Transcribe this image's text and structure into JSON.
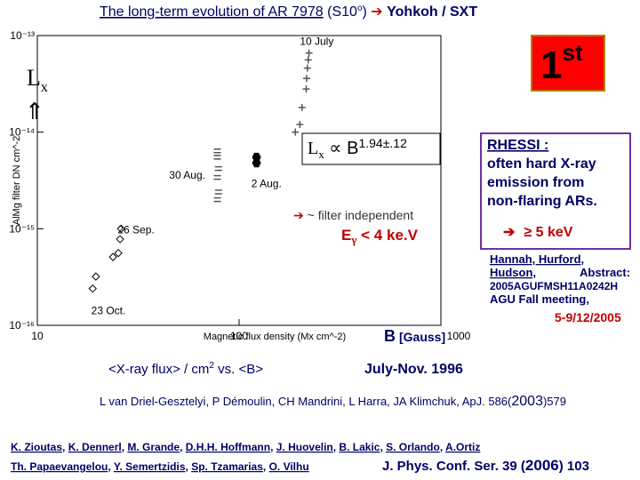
{
  "title": {
    "main": "The long-term evolution of AR 7978",
    "pre": "(S10",
    "sup": "o",
    "post": ")",
    "arrow": "➔",
    "instrument": "Yohkoh / SXT"
  },
  "badge": {
    "num": "1",
    "sup": "st"
  },
  "lx_label": {
    "letter": "L",
    "sub": "x",
    "arrow": "⇑"
  },
  "chart_data": {
    "type": "scatter",
    "x_label": "Magnetic flux density (Mx cm^-2)",
    "y_label": "AlMg filter DN cm^-2",
    "log_x": true,
    "log_y": true,
    "xlim": [
      10,
      1000
    ],
    "xticks": [
      10,
      100,
      1000
    ],
    "ylim": [
      1e-16,
      1e-13
    ],
    "yticks": [
      {
        "value": 1e-13,
        "label": "10⁻¹³"
      },
      {
        "value": 1e-14,
        "label": "10⁻¹⁴"
      },
      {
        "value": 1e-15,
        "label": "10⁻¹⁵"
      },
      {
        "value": 1e-16,
        "label": "10⁻¹⁶"
      }
    ],
    "annotations": [
      {
        "text": "10 July",
        "x": 200,
        "y": 8e-14
      },
      {
        "text": "30 Aug.",
        "x": 45,
        "y": 3.3e-15
      },
      {
        "text": "2 Aug.",
        "x": 115,
        "y": 2.7e-15
      },
      {
        "text": "26 Sep.",
        "x": 25,
        "y": 9e-16
      },
      {
        "text": "23 Oct.",
        "x": 18.5,
        "y": 1.3e-16
      }
    ],
    "series": [
      {
        "marker": "diamond",
        "color": "#000000",
        "x": [
          18.8,
          19.5,
          23.7,
          25.2,
          25.7,
          26
        ],
        "values": [
          2.4e-16,
          3.2e-16,
          5.1e-16,
          5.6e-16,
          7.8e-16,
          1e-15
        ]
      },
      {
        "marker": "hash",
        "color": "#555555",
        "x": [
          78,
          78,
          79,
          78,
          79,
          78
        ],
        "values": [
          6.4e-15,
          5.5e-15,
          4.2e-15,
          3.4e-15,
          2.4e-15,
          2e-15
        ]
      },
      {
        "marker": "hexagon",
        "color": "#000000",
        "x": [
          122,
          122
        ],
        "values": [
          5.5e-15,
          4.8e-15
        ]
      },
      {
        "marker": "plus",
        "color": "#555555",
        "x": [
          190,
          200,
          205,
          215,
          216,
          218,
          220,
          222
        ],
        "values": [
          1e-14,
          1.2e-14,
          1.8e-14,
          2.8e-14,
          3.6e-14,
          4.6e-14,
          5.6e-14,
          6.6e-14
        ]
      }
    ]
  },
  "relation": {
    "letter": "L",
    "sub": "x",
    "mid": " ∝ B",
    "exp": "1.94±.12"
  },
  "filter_note": {
    "arrow": "➔",
    "text": " ~ filter independent"
  },
  "energy": {
    "letter": "E",
    "sub": "γ",
    "text": " < 4 ke.V"
  },
  "rhessi": {
    "head": "RHESSI :",
    "lines": [
      "often hard X-ray",
      "emission from",
      "non-flaring ARs."
    ],
    "arrow": "➔",
    "energy": "≥ 5 keV"
  },
  "reference": {
    "lines": [
      "Hannah, Hurford,",
      "Hudson,",
      "Abstract:",
      "2005AGUFMSH11A0242H",
      "AGU Fall meeting,"
    ],
    "date": "5-9/12/2005"
  },
  "b_label": {
    "text": "B",
    "unit": "[Gauss]"
  },
  "flux_label": {
    "pre": "<X-ray flux> / cm",
    "sup": "2",
    "post": "  vs. <B>"
  },
  "period": "July-Nov. 1996",
  "citation": {
    "text": "L van Driel-Gesztelyi, P Démoulin, CH Mandrini, L Harra, JA Klimchuk,  ApJ. 586(",
    "year": "2003",
    "post": ")579"
  },
  "authors": {
    "line1": [
      "K. Zioutas",
      "K. Dennerl",
      "M. Grande",
      "D.H.H. Hoffmann",
      "J. Huovelin",
      "B. Lakic",
      "S. Orlando",
      "A.Ortiz"
    ],
    "line2": [
      "Th. Papaevangelou",
      "Y. Semertzidis",
      "Sp. Tzamarias",
      "O. Vilhu"
    ],
    "sep": ", ",
    "journal_pre": "J. Phys. Conf. Ser. 39 (",
    "journal_year": "2006",
    "journal_post": ") 103"
  }
}
